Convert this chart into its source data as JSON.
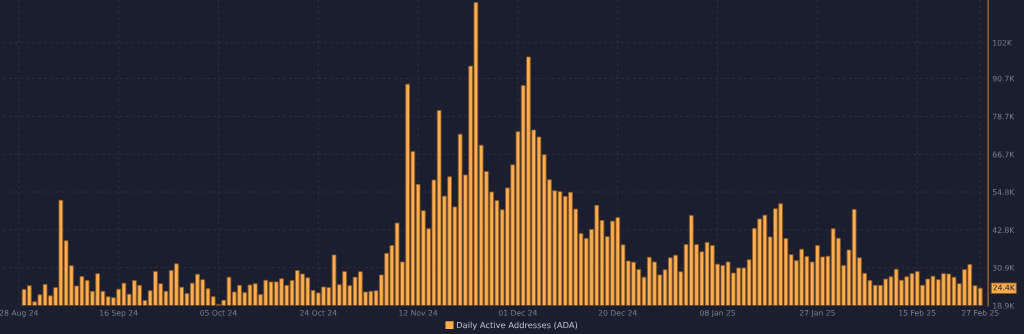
{
  "chart_data": {
    "type": "bar",
    "x": [
      "2024-08-29",
      "2024-08-30",
      "2024-08-31",
      "2024-09-01",
      "2024-09-02",
      "2024-09-03",
      "2024-09-04",
      "2024-09-05",
      "2024-09-06",
      "2024-09-07",
      "2024-09-08",
      "2024-09-09",
      "2024-09-10",
      "2024-09-11",
      "2024-09-12",
      "2024-09-13",
      "2024-09-14",
      "2024-09-15",
      "2024-09-16",
      "2024-09-17",
      "2024-09-18",
      "2024-09-19",
      "2024-09-20",
      "2024-09-21",
      "2024-09-22",
      "2024-09-23",
      "2024-09-24",
      "2024-09-25",
      "2024-09-26",
      "2024-09-27",
      "2024-09-28",
      "2024-09-29",
      "2024-09-30",
      "2024-10-01",
      "2024-10-02",
      "2024-10-03",
      "2024-10-04",
      "2024-10-05",
      "2024-10-06",
      "2024-10-07",
      "2024-10-08",
      "2024-10-09",
      "2024-10-10",
      "2024-10-11",
      "2024-10-12",
      "2024-10-13",
      "2024-10-14",
      "2024-10-15",
      "2024-10-16",
      "2024-10-17",
      "2024-10-18",
      "2024-10-19",
      "2024-10-20",
      "2024-10-21",
      "2024-10-22",
      "2024-10-23",
      "2024-10-24",
      "2024-10-25",
      "2024-10-26",
      "2024-10-27",
      "2024-10-28",
      "2024-10-29",
      "2024-10-30",
      "2024-10-31",
      "2024-11-01",
      "2024-11-02",
      "2024-11-03",
      "2024-11-04",
      "2024-11-05",
      "2024-11-06",
      "2024-11-07",
      "2024-11-08",
      "2024-11-09",
      "2024-11-10",
      "2024-11-11",
      "2024-11-12",
      "2024-11-13",
      "2024-11-14",
      "2024-11-15",
      "2024-11-16",
      "2024-11-17",
      "2024-11-18",
      "2024-11-19",
      "2024-11-20",
      "2024-11-21",
      "2024-11-22",
      "2024-11-23",
      "2024-11-24",
      "2024-11-25",
      "2024-11-26",
      "2024-11-27",
      "2024-11-28",
      "2024-11-29",
      "2024-11-30",
      "2024-12-01",
      "2024-12-02",
      "2024-12-03",
      "2024-12-04",
      "2024-12-05",
      "2024-12-06",
      "2024-12-07",
      "2024-12-08",
      "2024-12-09",
      "2024-12-10",
      "2024-12-11",
      "2024-12-12",
      "2024-12-13",
      "2024-12-14",
      "2024-12-15",
      "2024-12-16",
      "2024-12-17",
      "2024-12-18",
      "2024-12-19",
      "2024-12-20",
      "2024-12-21",
      "2024-12-22",
      "2024-12-23",
      "2024-12-24",
      "2024-12-25",
      "2024-12-26",
      "2024-12-27",
      "2024-12-28",
      "2024-12-29",
      "2024-12-30",
      "2024-12-31",
      "2025-01-01",
      "2025-01-02",
      "2025-01-03",
      "2025-01-04",
      "2025-01-05",
      "2025-01-06",
      "2025-01-07",
      "2025-01-08",
      "2025-01-09",
      "2025-01-10",
      "2025-01-11",
      "2025-01-12",
      "2025-01-13",
      "2025-01-14",
      "2025-01-15",
      "2025-01-16",
      "2025-01-17",
      "2025-01-18",
      "2025-01-19",
      "2025-01-20",
      "2025-01-21",
      "2025-01-22",
      "2025-01-23",
      "2025-01-24",
      "2025-01-25",
      "2025-01-26",
      "2025-01-27",
      "2025-01-28",
      "2025-01-29",
      "2025-01-30",
      "2025-01-31",
      "2025-02-01",
      "2025-02-02",
      "2025-02-03",
      "2025-02-04",
      "2025-02-05",
      "2025-02-06",
      "2025-02-07",
      "2025-02-08",
      "2025-02-09",
      "2025-02-10",
      "2025-02-11",
      "2025-02-12",
      "2025-02-13",
      "2025-02-14",
      "2025-02-15",
      "2025-02-16",
      "2025-02-17",
      "2025-02-18",
      "2025-02-19",
      "2025-02-20",
      "2025-02-21",
      "2025-02-22",
      "2025-02-23",
      "2025-02-24",
      "2025-02-25",
      "2025-02-26",
      "2025-02-27"
    ],
    "series": [
      {
        "name": "Daily Active Addresses (ADA)",
        "color": "#ffad4d",
        "values": [
          24.0,
          25.2,
          20.1,
          22.3,
          25.6,
          22.0,
          24.6,
          52.2,
          39.4,
          31.5,
          25.1,
          28.1,
          26.8,
          23.4,
          29.0,
          23.4,
          21.7,
          21.4,
          24.1,
          26.0,
          22.5,
          26.8,
          25.3,
          20.5,
          23.6,
          29.7,
          25.8,
          23.4,
          30.0,
          32.1,
          24.7,
          22.7,
          26.0,
          28.8,
          27.1,
          24.2,
          21.7,
          19.2,
          20.6,
          27.9,
          23.2,
          25.3,
          23.0,
          25.4,
          25.8,
          22.4,
          26.9,
          26.4,
          26.4,
          27.4,
          25.3,
          26.8,
          30.0,
          28.9,
          27.7,
          23.7,
          22.9,
          24.8,
          24.6,
          34.9,
          25.5,
          29.7,
          25.2,
          27.9,
          29.6,
          23.2,
          23.4,
          23.6,
          28.6,
          35.4,
          37.9,
          45.0,
          32.7,
          88.9,
          67.6,
          57.2,
          48.9,
          43.2,
          58.6,
          80.6,
          53.5,
          59.6,
          50.1,
          73.1,
          60.2,
          94.6,
          114.7,
          69.6,
          61.3,
          54.8,
          52.1,
          49.2,
          56.1,
          63.4,
          73.9,
          88.5,
          97.5,
          74.4,
          72.2,
          66.6,
          58.7,
          55.2,
          54.9,
          53.4,
          54.7,
          49.4,
          41.7,
          40.1,
          43.0,
          50.6,
          45.8,
          40.7,
          45.6,
          46.7,
          38.1,
          33.0,
          32.6,
          30.3,
          27.9,
          34.2,
          32.7,
          28.6,
          30.2,
          34.0,
          34.8,
          29.6,
          38.2,
          47.4,
          38.2,
          35.9,
          38.9,
          37.9,
          32.0,
          31.6,
          32.7,
          29.2,
          30.8,
          30.8,
          33.4,
          43.3,
          46.3,
          47.5,
          40.6,
          49.5,
          51.1,
          40.1,
          35.0,
          33.1,
          36.7,
          34.4,
          32.7,
          37.9,
          34.3,
          34.5,
          43.2,
          40.2,
          31.6,
          36.5,
          49.3,
          34.0,
          29.1,
          26.8,
          25.3,
          25.3,
          27.3,
          28.0,
          30.4,
          26.9,
          28.0,
          29.0,
          29.7,
          25.3,
          27.3,
          28.2,
          27.1,
          29.0,
          28.9,
          27.9,
          25.8,
          30.3,
          31.9,
          25.2,
          24.4
        ]
      }
    ],
    "xlim": [
      "2024-08-25",
      "2025-02-28T12:00"
    ],
    "xticks": [
      {
        "value": "2024-08-28",
        "label": "28 Aug 24"
      },
      {
        "value": "2024-09-16",
        "label": "16 Sep 24"
      },
      {
        "value": "2024-10-05",
        "label": "05 Oct 24"
      },
      {
        "value": "2024-10-24",
        "label": "24 Oct 24"
      },
      {
        "value": "2024-11-12",
        "label": "12 Nov 24"
      },
      {
        "value": "2024-12-01",
        "label": "01 Dec 24"
      },
      {
        "value": "2024-12-20",
        "label": "20 Dec 24"
      },
      {
        "value": "2025-01-08",
        "label": "08 Jan 25"
      },
      {
        "value": "2025-01-27",
        "label": "27 Jan 25"
      },
      {
        "value": "2025-02-15",
        "label": "15 Feb 25"
      },
      {
        "value": "2025-02-27",
        "label": "27 Feb 25"
      }
    ],
    "ylim": [
      18.9,
      115.5
    ],
    "yticks": [
      {
        "value": 18.9,
        "label": "18.9K"
      },
      {
        "value": 30.9,
        "label": "30.9K"
      },
      {
        "value": 42.8,
        "label": "42.8K"
      },
      {
        "value": 54.8,
        "label": "54.8K"
      },
      {
        "value": 66.7,
        "label": "66.7K"
      },
      {
        "value": 78.7,
        "label": "78.7K"
      },
      {
        "value": 90.7,
        "label": "90.7K"
      },
      {
        "value": 102,
        "label": "102K"
      }
    ],
    "annotations": [
      {
        "text": "24.4K",
        "x": "2025-02-27",
        "y": 24.4
      }
    ],
    "grid": true,
    "legend": "bottom"
  }
}
